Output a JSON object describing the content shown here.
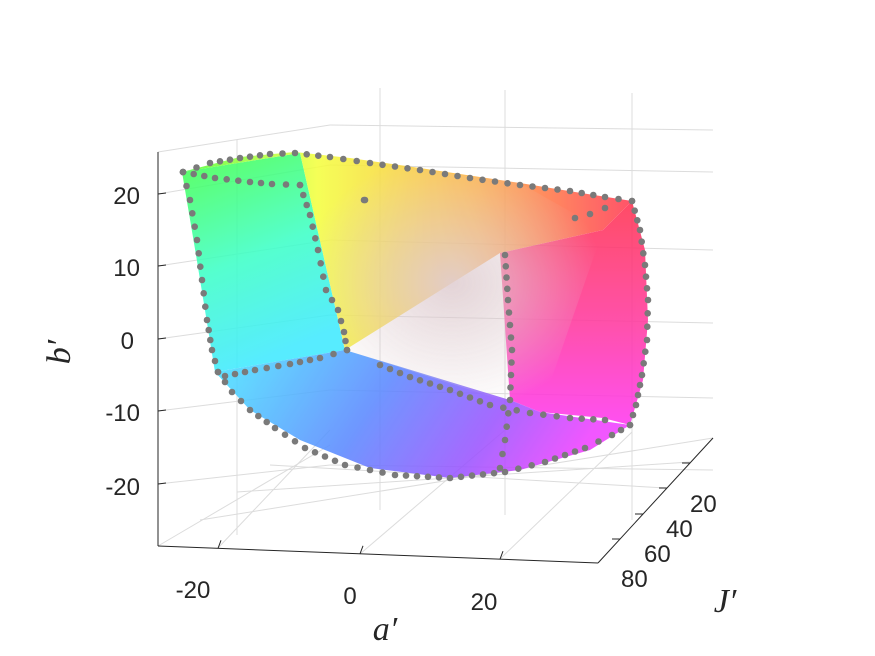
{
  "chart_data": {
    "type": "scatter",
    "subtype": "3d-surface-with-boundary-points",
    "title": "",
    "xlabel": "a′",
    "ylabel": "J′",
    "zlabel": "b′",
    "x_ticks": [
      "-20",
      "0",
      "20"
    ],
    "y_ticks": [
      "20",
      "40",
      "60",
      "80"
    ],
    "z_ticks": [
      "20",
      "10",
      "0",
      "-10",
      "-20"
    ],
    "xlim": [
      -27,
      31
    ],
    "zlim": [
      -29,
      25
    ],
    "grid": true,
    "surface_colormap": "hue",
    "marker_color": "#7a7a7a",
    "corners": [
      {
        "name": "green",
        "color": "#33ff33"
      },
      {
        "name": "yellow",
        "color": "#ffff33"
      },
      {
        "name": "red",
        "color": "#ff3344"
      },
      {
        "name": "magenta",
        "color": "#ff33dd"
      },
      {
        "name": "blue",
        "color": "#4466ff"
      },
      {
        "name": "cyan",
        "color": "#33ffee"
      }
    ]
  }
}
